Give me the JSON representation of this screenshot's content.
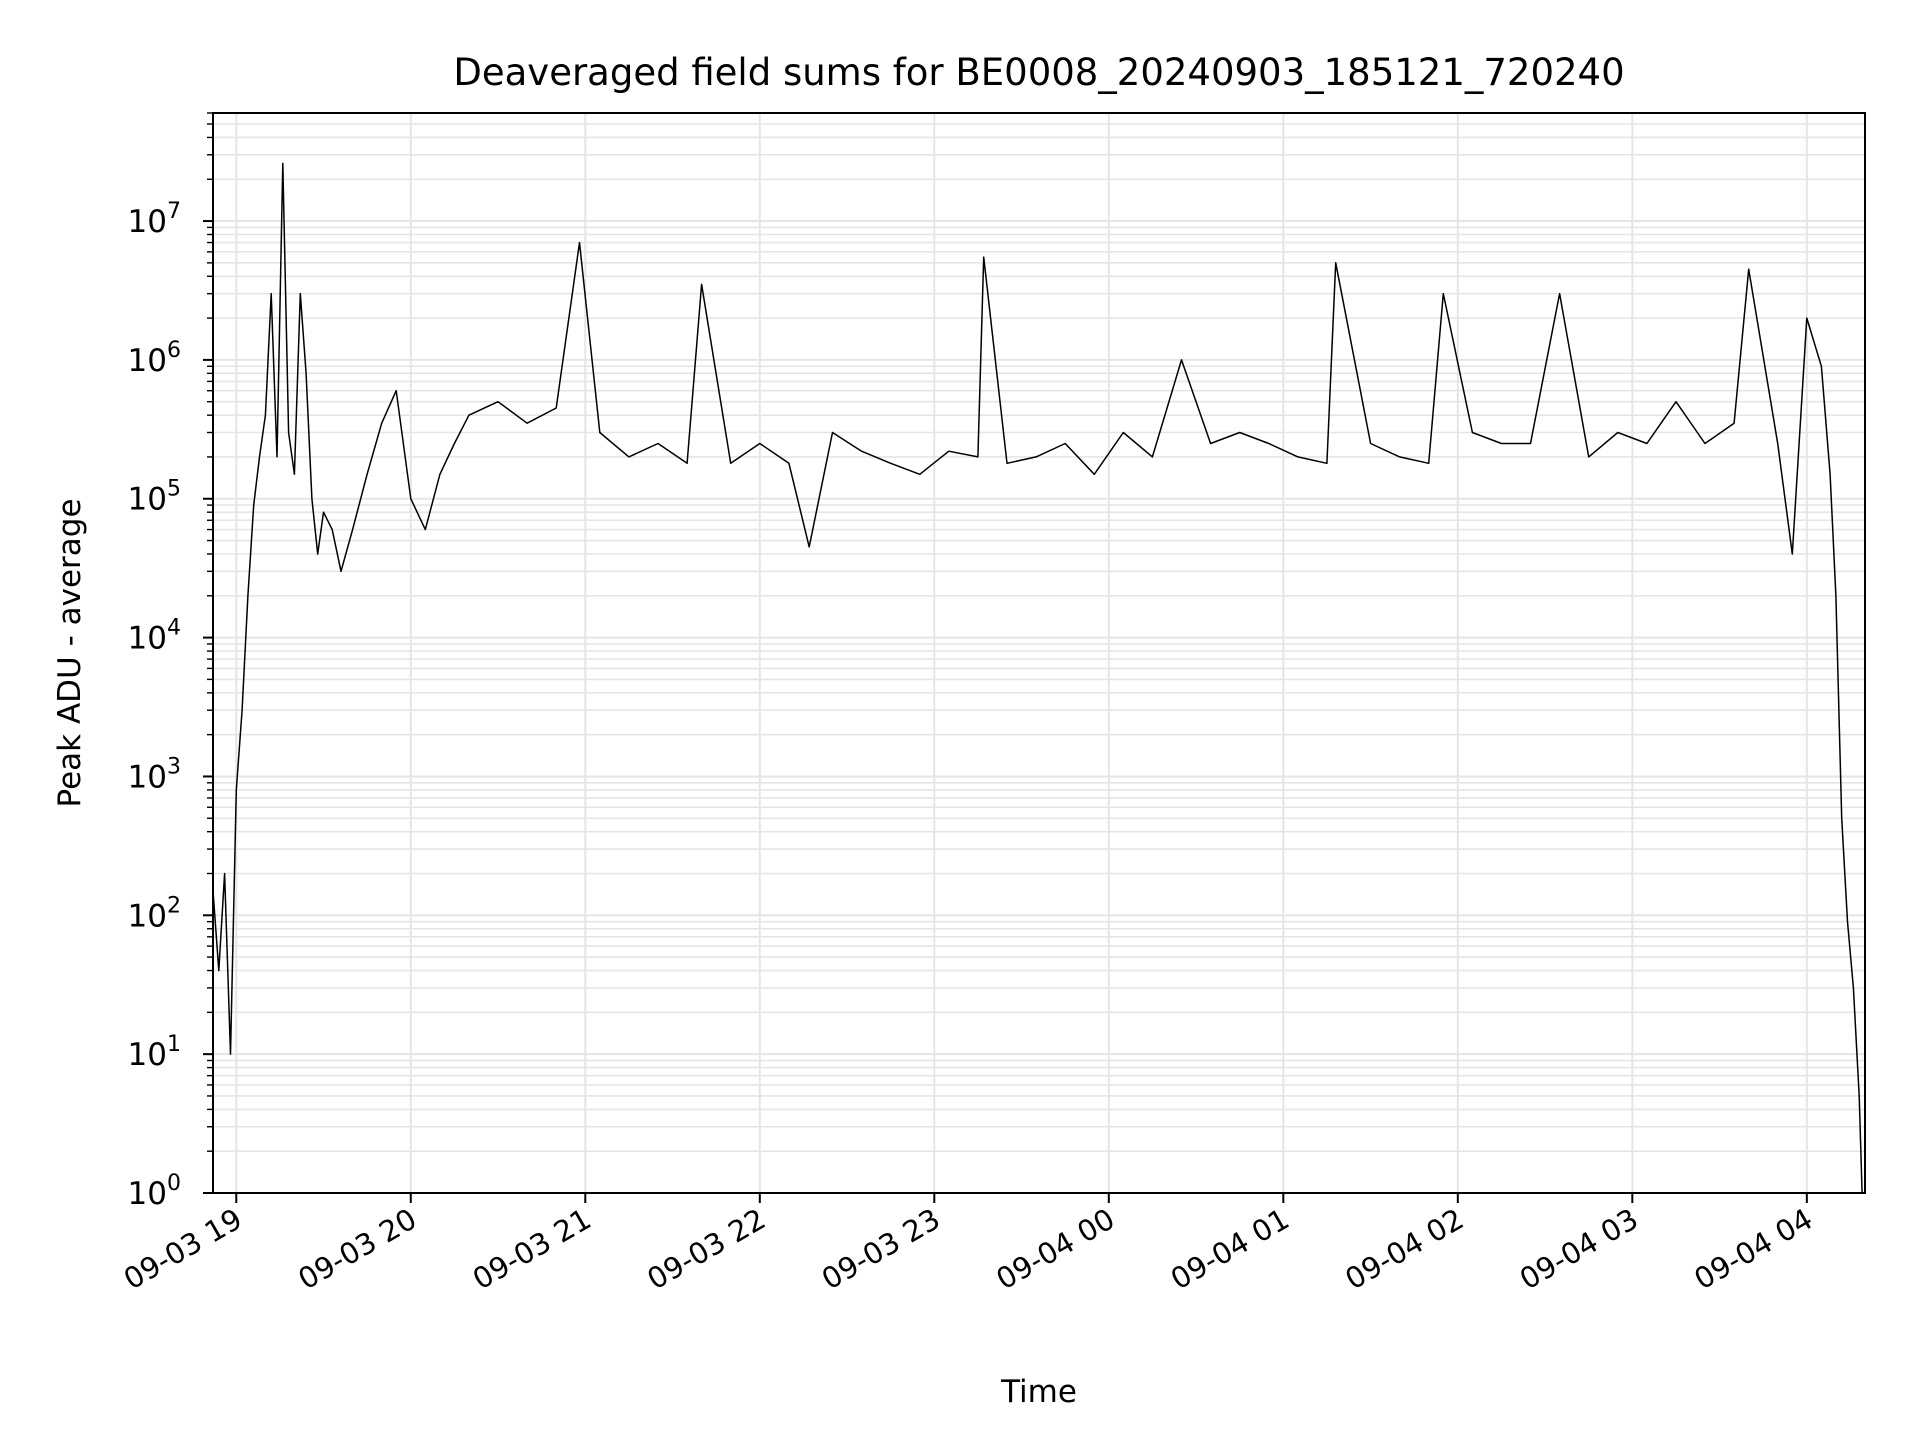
{
  "chart_data": {
    "type": "line",
    "title": "Deaveraged field sums for BE0008_20240903_185121_720240",
    "xlabel": "Time",
    "ylabel": "Peak ADU - average",
    "yscale": "log",
    "ylim": [
      1,
      60000000
    ],
    "xlim": [
      "2024-09-03 18:52",
      "2024-09-04 04:20"
    ],
    "grid": "major and minor",
    "xticks": [
      {
        "t": "2024-09-03 19:00",
        "label": "09-03 19"
      },
      {
        "t": "2024-09-03 20:00",
        "label": "09-03 20"
      },
      {
        "t": "2024-09-03 21:00",
        "label": "09-03 21"
      },
      {
        "t": "2024-09-03 22:00",
        "label": "09-03 22"
      },
      {
        "t": "2024-09-03 23:00",
        "label": "09-03 23"
      },
      {
        "t": "2024-09-04 00:00",
        "label": "09-04 00"
      },
      {
        "t": "2024-09-04 01:00",
        "label": "09-04 01"
      },
      {
        "t": "2024-09-04 02:00",
        "label": "09-04 02"
      },
      {
        "t": "2024-09-04 03:00",
        "label": "09-04 03"
      },
      {
        "t": "2024-09-04 04:00",
        "label": "09-04 04"
      }
    ],
    "yticks": [
      {
        "value": 1,
        "base": "10",
        "exp": "0"
      },
      {
        "value": 10,
        "base": "10",
        "exp": "1"
      },
      {
        "value": 100,
        "base": "10",
        "exp": "2"
      },
      {
        "value": 1000,
        "base": "10",
        "exp": "3"
      },
      {
        "value": 10000,
        "base": "10",
        "exp": "4"
      },
      {
        "value": 100000,
        "base": "10",
        "exp": "5"
      },
      {
        "value": 1000000,
        "base": "10",
        "exp": "6"
      },
      {
        "value": 10000000,
        "base": "10",
        "exp": "7"
      }
    ],
    "series": [
      {
        "color": "#000000",
        "x": [
          "2024-09-03 18:52",
          "2024-09-03 18:54",
          "2024-09-03 18:56",
          "2024-09-03 18:58",
          "2024-09-03 19:00",
          "2024-09-03 19:02",
          "2024-09-03 19:04",
          "2024-09-03 19:06",
          "2024-09-03 19:08",
          "2024-09-03 19:10",
          "2024-09-03 19:12",
          "2024-09-03 19:14",
          "2024-09-03 19:16",
          "2024-09-03 19:18",
          "2024-09-03 19:20",
          "2024-09-03 19:22",
          "2024-09-03 19:24",
          "2024-09-03 19:26",
          "2024-09-03 19:28",
          "2024-09-03 19:30",
          "2024-09-03 19:33",
          "2024-09-03 19:36",
          "2024-09-03 19:40",
          "2024-09-03 19:45",
          "2024-09-03 19:50",
          "2024-09-03 19:55",
          "2024-09-03 20:00",
          "2024-09-03 20:05",
          "2024-09-03 20:10",
          "2024-09-03 20:15",
          "2024-09-03 20:20",
          "2024-09-03 20:30",
          "2024-09-03 20:40",
          "2024-09-03 20:50",
          "2024-09-03 20:58",
          "2024-09-03 21:05",
          "2024-09-03 21:15",
          "2024-09-03 21:25",
          "2024-09-03 21:35",
          "2024-09-03 21:40",
          "2024-09-03 21:50",
          "2024-09-03 22:00",
          "2024-09-03 22:10",
          "2024-09-03 22:17",
          "2024-09-03 22:25",
          "2024-09-03 22:35",
          "2024-09-03 22:45",
          "2024-09-03 22:55",
          "2024-09-03 23:05",
          "2024-09-03 23:15",
          "2024-09-03 23:17",
          "2024-09-03 23:25",
          "2024-09-03 23:35",
          "2024-09-03 23:45",
          "2024-09-03 23:55",
          "2024-09-04 00:05",
          "2024-09-04 00:15",
          "2024-09-04 00:25",
          "2024-09-04 00:35",
          "2024-09-04 00:45",
          "2024-09-04 00:55",
          "2024-09-04 01:05",
          "2024-09-04 01:15",
          "2024-09-04 01:18",
          "2024-09-04 01:30",
          "2024-09-04 01:40",
          "2024-09-04 01:50",
          "2024-09-04 01:55",
          "2024-09-04 02:05",
          "2024-09-04 02:15",
          "2024-09-04 02:25",
          "2024-09-04 02:35",
          "2024-09-04 02:45",
          "2024-09-04 02:55",
          "2024-09-04 03:05",
          "2024-09-04 03:15",
          "2024-09-04 03:25",
          "2024-09-04 03:35",
          "2024-09-04 03:40",
          "2024-09-04 03:50",
          "2024-09-04 03:55",
          "2024-09-04 04:00",
          "2024-09-04 04:05",
          "2024-09-04 04:08",
          "2024-09-04 04:10",
          "2024-09-04 04:12",
          "2024-09-04 04:14",
          "2024-09-04 04:16",
          "2024-09-04 04:18",
          "2024-09-04 04:19"
        ],
        "y": [
          150,
          40,
          200,
          10,
          800,
          3000,
          20000,
          90000,
          200000,
          400000,
          3000000,
          200000,
          26000000,
          300000,
          150000,
          3000000,
          800000,
          100000,
          40000,
          80000,
          60000,
          30000,
          60000,
          150000,
          350000,
          600000,
          100000,
          60000,
          150000,
          250000,
          400000,
          500000,
          350000,
          450000,
          7000000,
          300000,
          200000,
          250000,
          180000,
          3500000,
          180000,
          250000,
          180000,
          45000,
          300000,
          220000,
          180000,
          150000,
          220000,
          200000,
          5500000,
          180000,
          200000,
          250000,
          150000,
          300000,
          200000,
          1000000,
          250000,
          300000,
          250000,
          200000,
          180000,
          5000000,
          250000,
          200000,
          180000,
          3000000,
          300000,
          250000,
          250000,
          3000000,
          200000,
          300000,
          250000,
          500000,
          250000,
          350000,
          4500000,
          250000,
          40000,
          2000000,
          900000,
          150000,
          20000,
          500,
          90,
          30,
          5,
          1
        ]
      }
    ]
  }
}
